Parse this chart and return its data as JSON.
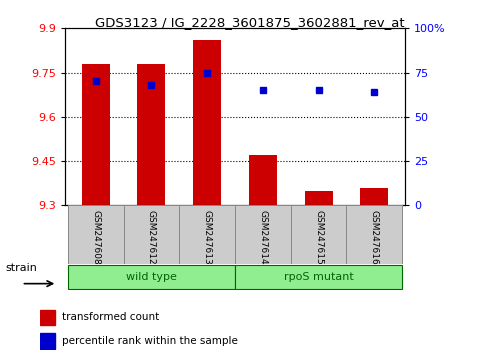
{
  "title": "GDS3123 / IG_2228_3601875_3602881_rev_at",
  "samples": [
    "GSM247608",
    "GSM247612",
    "GSM247613",
    "GSM247614",
    "GSM247615",
    "GSM247616"
  ],
  "bar_values": [
    9.78,
    9.78,
    9.86,
    9.47,
    9.35,
    9.36
  ],
  "percentile_values": [
    70,
    68,
    75,
    65,
    65,
    64
  ],
  "groups": [
    {
      "label": "wild type",
      "start": 0,
      "end": 2
    },
    {
      "label": "rpoS mutant",
      "start": 3,
      "end": 5
    }
  ],
  "bar_color": "#CC0000",
  "dot_color": "#0000CC",
  "ylim_left": [
    9.3,
    9.9
  ],
  "ylim_right": [
    0,
    100
  ],
  "yticks_left": [
    9.3,
    9.45,
    9.6,
    9.75,
    9.9
  ],
  "yticks_right": [
    0,
    25,
    50,
    75,
    100
  ],
  "ytick_labels_right": [
    "0",
    "25",
    "50",
    "75",
    "100%"
  ],
  "bar_width": 0.5,
  "legend_items": [
    {
      "label": "transformed count",
      "color": "#CC0000"
    },
    {
      "label": "percentile rank within the sample",
      "color": "#0000CC"
    }
  ],
  "group_label_color": "#006600",
  "group_bg_color": "#90EE90",
  "group_edge_color": "#006600",
  "sample_bg_color": "#CCCCCC",
  "sample_edge_color": "#888888"
}
